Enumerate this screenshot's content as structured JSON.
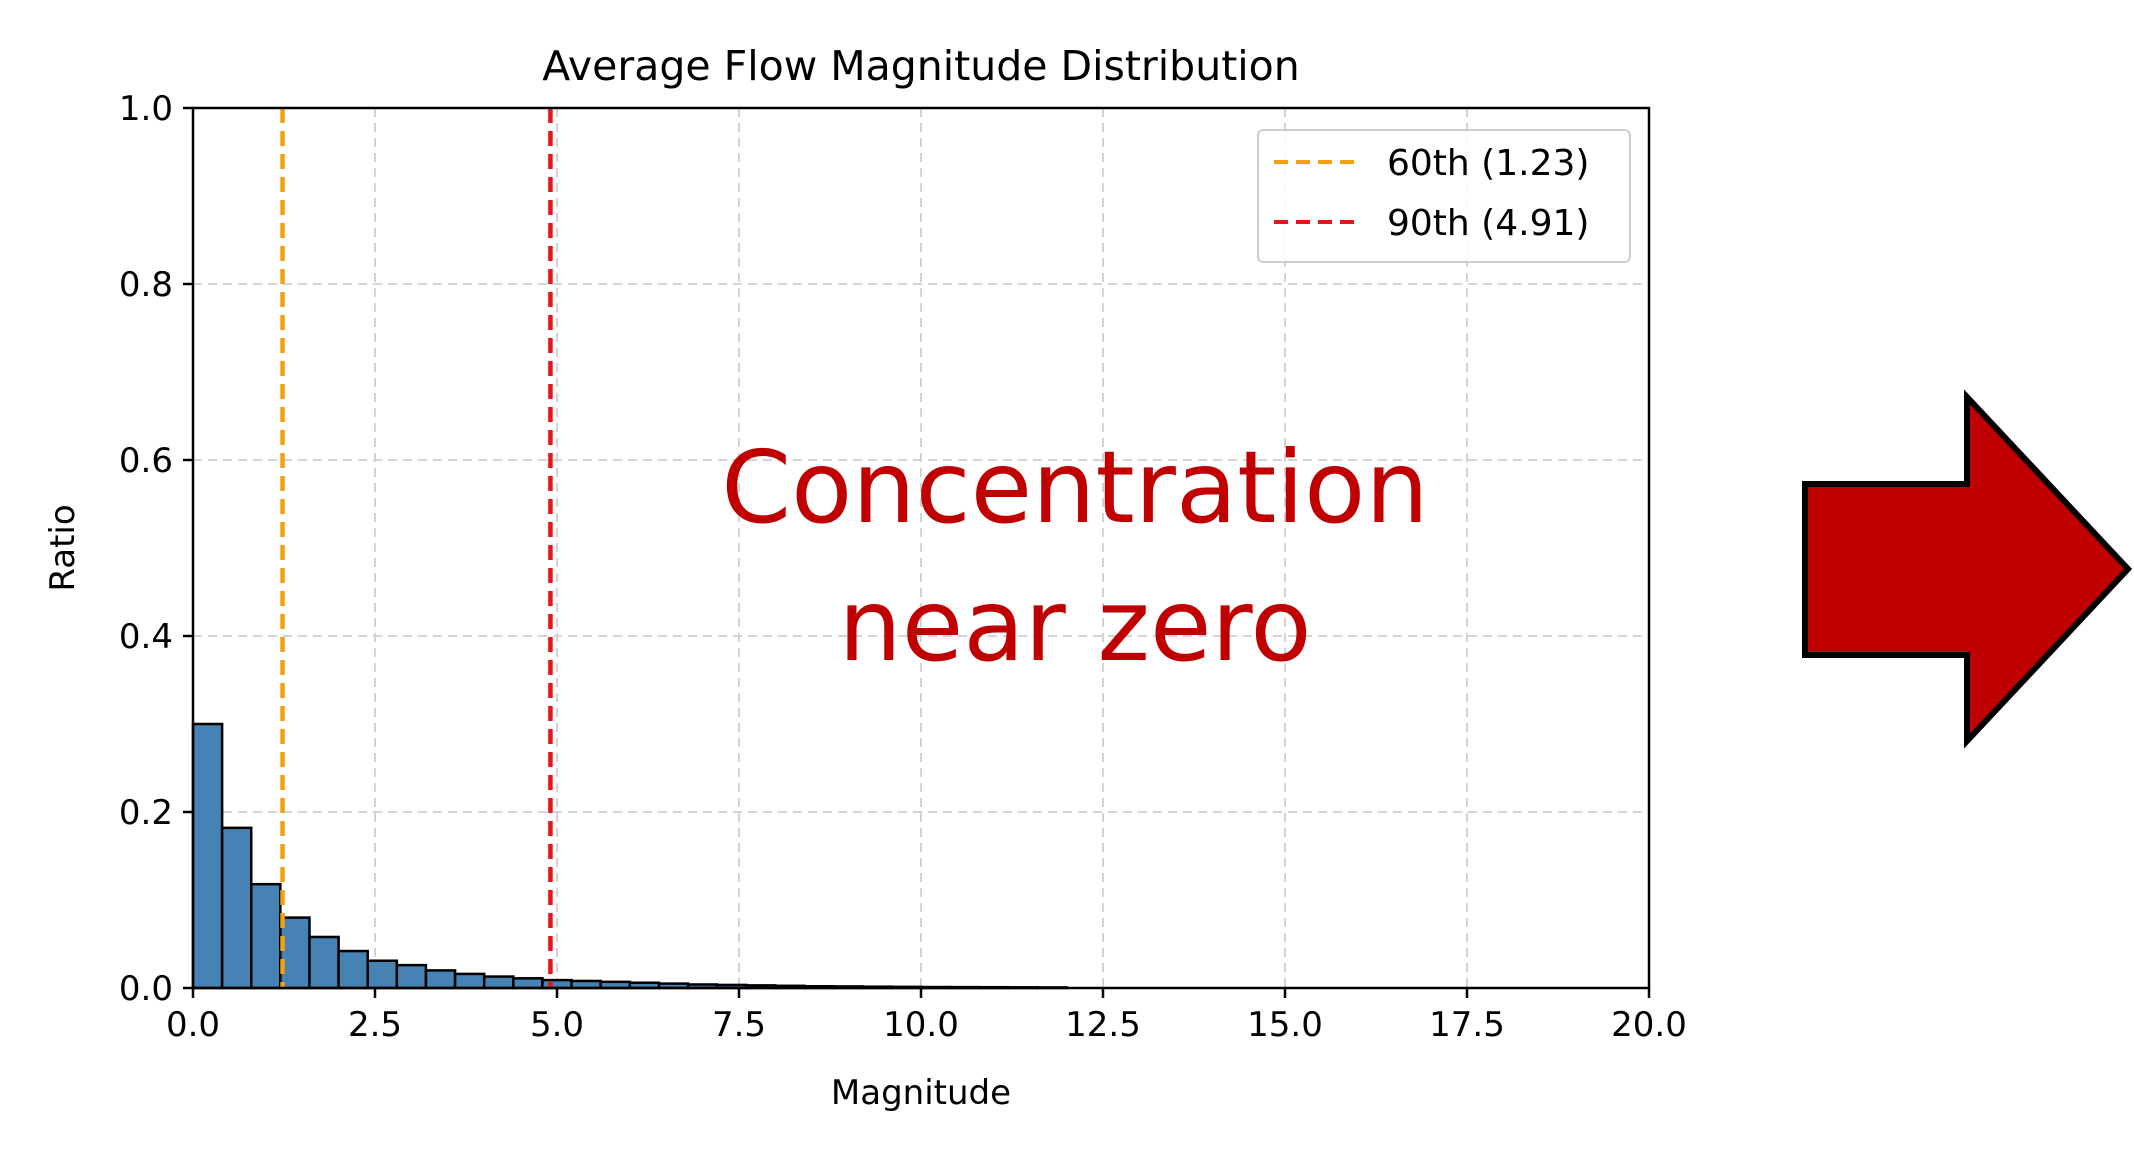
{
  "chart_data": {
    "type": "bar",
    "title": "Average Flow Magnitude Distribution",
    "xlabel": "Magnitude",
    "ylabel": "Ratio",
    "xlim": [
      0,
      20
    ],
    "ylim": [
      0,
      1
    ],
    "xticks": [
      "0.0",
      "2.5",
      "5.0",
      "7.5",
      "10.0",
      "12.5",
      "15.0",
      "17.5",
      "20.0"
    ],
    "yticks": [
      "0.0",
      "0.2",
      "0.4",
      "0.6",
      "0.8",
      "1.0"
    ],
    "grid": true,
    "bin_width": 0.4,
    "bins": [
      {
        "x0": 0.0,
        "value": 0.3
      },
      {
        "x0": 0.4,
        "value": 0.182
      },
      {
        "x0": 0.8,
        "value": 0.118
      },
      {
        "x0": 1.2,
        "value": 0.08
      },
      {
        "x0": 1.6,
        "value": 0.058
      },
      {
        "x0": 2.0,
        "value": 0.042
      },
      {
        "x0": 2.4,
        "value": 0.031
      },
      {
        "x0": 2.8,
        "value": 0.026
      },
      {
        "x0": 3.2,
        "value": 0.02
      },
      {
        "x0": 3.6,
        "value": 0.016
      },
      {
        "x0": 4.0,
        "value": 0.013
      },
      {
        "x0": 4.4,
        "value": 0.011
      },
      {
        "x0": 4.8,
        "value": 0.009
      },
      {
        "x0": 5.2,
        "value": 0.008
      },
      {
        "x0": 5.6,
        "value": 0.007
      },
      {
        "x0": 6.0,
        "value": 0.006
      },
      {
        "x0": 6.4,
        "value": 0.005
      },
      {
        "x0": 6.8,
        "value": 0.004
      },
      {
        "x0": 7.2,
        "value": 0.0035
      },
      {
        "x0": 7.6,
        "value": 0.003
      },
      {
        "x0": 8.0,
        "value": 0.0025
      },
      {
        "x0": 8.4,
        "value": 0.002
      },
      {
        "x0": 8.8,
        "value": 0.0018
      },
      {
        "x0": 9.2,
        "value": 0.0015
      },
      {
        "x0": 9.6,
        "value": 0.0013
      },
      {
        "x0": 10.0,
        "value": 0.0011
      },
      {
        "x0": 10.4,
        "value": 0.001
      },
      {
        "x0": 10.8,
        "value": 0.0009
      },
      {
        "x0": 11.2,
        "value": 0.0008
      },
      {
        "x0": 11.6,
        "value": 0.0007
      }
    ],
    "reference_lines": [
      {
        "name": "60th (1.23)",
        "x": 1.23,
        "color": "#f5a00d"
      },
      {
        "name": "90th (4.91)",
        "x": 4.91,
        "color": "#e8141c"
      }
    ],
    "legend_position": "top-right",
    "bar_color": "#4682b4",
    "annotation": [
      "Concentration",
      "near zero"
    ],
    "annotation_color": "#c00000"
  },
  "arrow": {
    "color": "#c00000"
  }
}
